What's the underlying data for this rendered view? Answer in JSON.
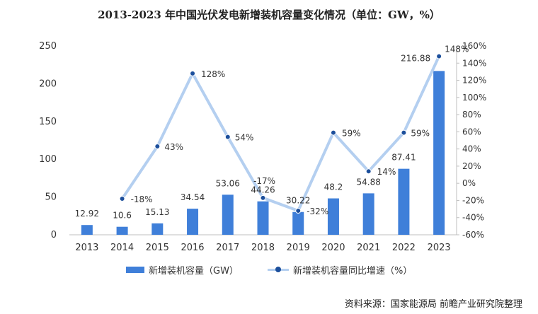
{
  "title": "2013-2023 年中国光伏发电新增装机容量变化情况（单位：GW，%）",
  "source": "资料来源：国家能源局 前瞻产业研究院整理",
  "colors": {
    "bar": "#3f7fd9",
    "line": "#b4cff0",
    "marker": "#1c4f9c",
    "axis": "#bfbfbf",
    "text": "#333333"
  },
  "chart_data": {
    "type": "bar+line",
    "categories": [
      "2013",
      "2014",
      "2015",
      "2016",
      "2017",
      "2018",
      "2019",
      "2020",
      "2021",
      "2022",
      "2023"
    ],
    "series": [
      {
        "name": "新增装机容量（GW）",
        "type": "bar",
        "axis": "left",
        "values": [
          12.92,
          10.6,
          15.13,
          34.54,
          53.06,
          44.26,
          30.22,
          48.2,
          54.88,
          87.41,
          216.88
        ],
        "labels": [
          "12.92",
          "10.6",
          "15.13",
          "34.54",
          "53.06",
          "44.26",
          "30.22",
          "48.2",
          "54.88",
          "87.41",
          "216.88"
        ]
      },
      {
        "name": "新增装机容量同比增速（%）",
        "type": "line",
        "axis": "right",
        "values": [
          null,
          -18,
          43,
          128,
          54,
          -17,
          -32,
          59,
          14,
          59,
          148
        ],
        "labels": [
          "",
          "-18%",
          "43%",
          "128%",
          "54%",
          "-17%",
          "-32%",
          "59%",
          "14%",
          "59%",
          "148%"
        ]
      }
    ],
    "y_left": {
      "min": 0,
      "max": 250,
      "ticks": [
        "0",
        "50",
        "100",
        "150",
        "200",
        "250"
      ]
    },
    "y_right": {
      "min": -60,
      "max": 160,
      "ticks": [
        "-60%",
        "-40%",
        "-20%",
        "0%",
        "20%",
        "40%",
        "60%",
        "80%",
        "100%",
        "120%",
        "140%",
        "160%"
      ]
    },
    "grid": false,
    "legend_position": "bottom"
  }
}
